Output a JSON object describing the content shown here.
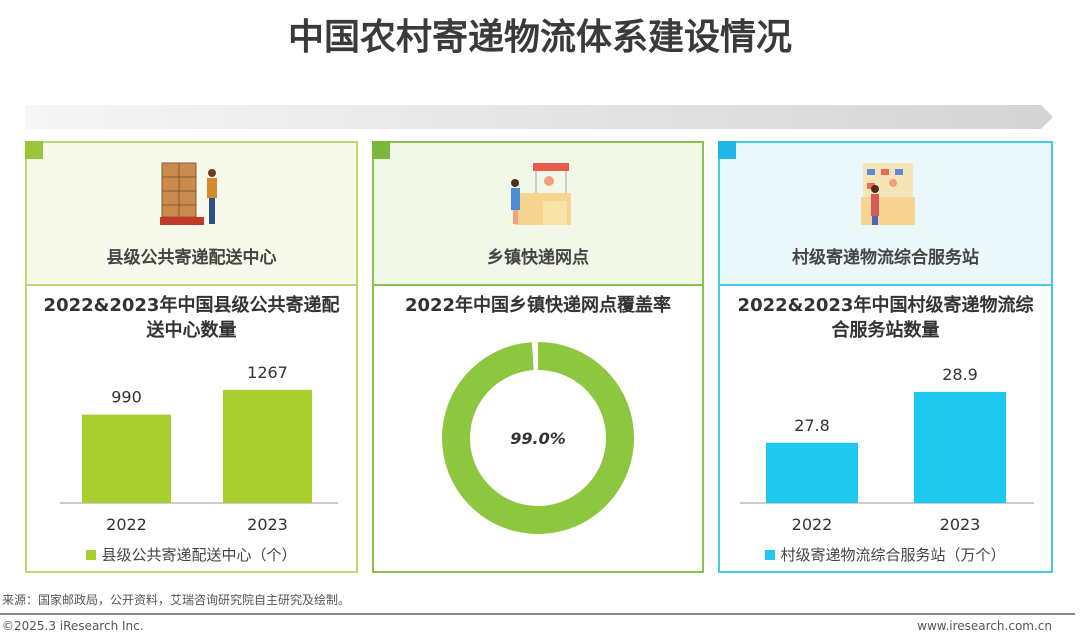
{
  "title": "中国农村寄递物流体系建设情况",
  "colors": {
    "green_bar": "#a9cf2f",
    "donut": "#8dc63f",
    "blue_bar": "#1fc8ee"
  },
  "panels": [
    {
      "label": "县级公共寄递配送中心",
      "icon": "warehouse-worker-icon"
    },
    {
      "label": "乡镇快递网点",
      "icon": "post-office-counter-icon"
    },
    {
      "label": "村级寄递物流综合服务站",
      "icon": "village-service-station-icon"
    }
  ],
  "chart_data": [
    {
      "type": "bar",
      "title": "2022&2023年中国县级公共寄递配送中心数量",
      "categories": [
        "2022",
        "2023"
      ],
      "series": [
        {
          "name": "县级公共寄递配送中心（个）",
          "values": [
            990,
            1267
          ]
        }
      ],
      "labels": [
        "990",
        "1267"
      ],
      "ylim": [
        0,
        1400
      ],
      "grid": false,
      "legend": "bottom"
    },
    {
      "type": "pie",
      "title": "2022年中国乡镇快递网点覆盖率",
      "values": [
        99.0,
        1.0
      ],
      "label": "99.0%",
      "donut": true
    },
    {
      "type": "bar",
      "title": "2022&2023年中国村级寄递物流综合服务站数量",
      "categories": [
        "2022",
        "2023"
      ],
      "series": [
        {
          "name": "村级寄递物流综合服务站（万个）",
          "values": [
            27.8,
            28.9
          ]
        }
      ],
      "labels": [
        "27.8",
        "28.9"
      ],
      "ylim": [
        26.5,
        29.2
      ],
      "grid": false,
      "legend": "bottom"
    }
  ],
  "footer": {
    "source": "来源：国家邮政局，公开资料，艾瑞咨询研究院自主研究及绘制。",
    "copyright": "©2025.3 iResearch Inc.",
    "url": "www.iresearch.com.cn"
  }
}
